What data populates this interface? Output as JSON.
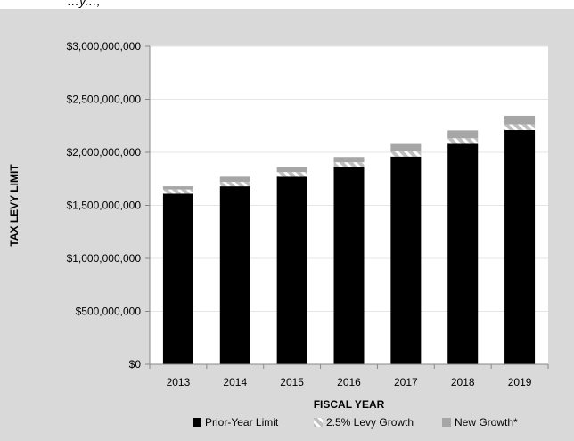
{
  "top_fragment": "...y...,",
  "colors": {
    "frame_bg": "#d9d9d9",
    "plot_bg": "#ffffff",
    "prior_year": "#000000",
    "levy_growth": "#c9c9c9",
    "new_growth": "#a6a6a6",
    "grid": "#e6e6e6"
  },
  "chart_data": {
    "type": "bar",
    "stacked": true,
    "title": "",
    "xlabel": "FISCAL YEAR",
    "ylabel": "TAX LEVY LIMIT",
    "categories": [
      "2013",
      "2014",
      "2015",
      "2016",
      "2017",
      "2018",
      "2019"
    ],
    "ylim": [
      0,
      3000000000
    ],
    "yticks": [
      0,
      500000000,
      1000000000,
      1500000000,
      2000000000,
      2500000000,
      3000000000
    ],
    "ytick_labels": [
      "$0",
      "$500,000,000",
      "$1,000,000,000",
      "$1,500,000,000",
      "$2,000,000,000",
      "$2,500,000,000",
      "$3,000,000,000"
    ],
    "grid": true,
    "legend_position": "bottom",
    "series": [
      {
        "name": "Prior-Year Limit",
        "color": "#000000",
        "pattern": "solid",
        "values": [
          1610000000,
          1680000000,
          1770000000,
          1860000000,
          1960000000,
          2080000000,
          2210000000
        ]
      },
      {
        "name": "2.5% Levy Growth",
        "color": "#c9c9c9",
        "pattern": "diagonal-hatch",
        "values": [
          40000000,
          42000000,
          44000000,
          46000000,
          49000000,
          52000000,
          55000000
        ]
      },
      {
        "name": "New Growth*",
        "color": "#a6a6a6",
        "pattern": "solid",
        "values": [
          30000000,
          48000000,
          46000000,
          50000000,
          70000000,
          75000000,
          80000000
        ]
      }
    ]
  }
}
